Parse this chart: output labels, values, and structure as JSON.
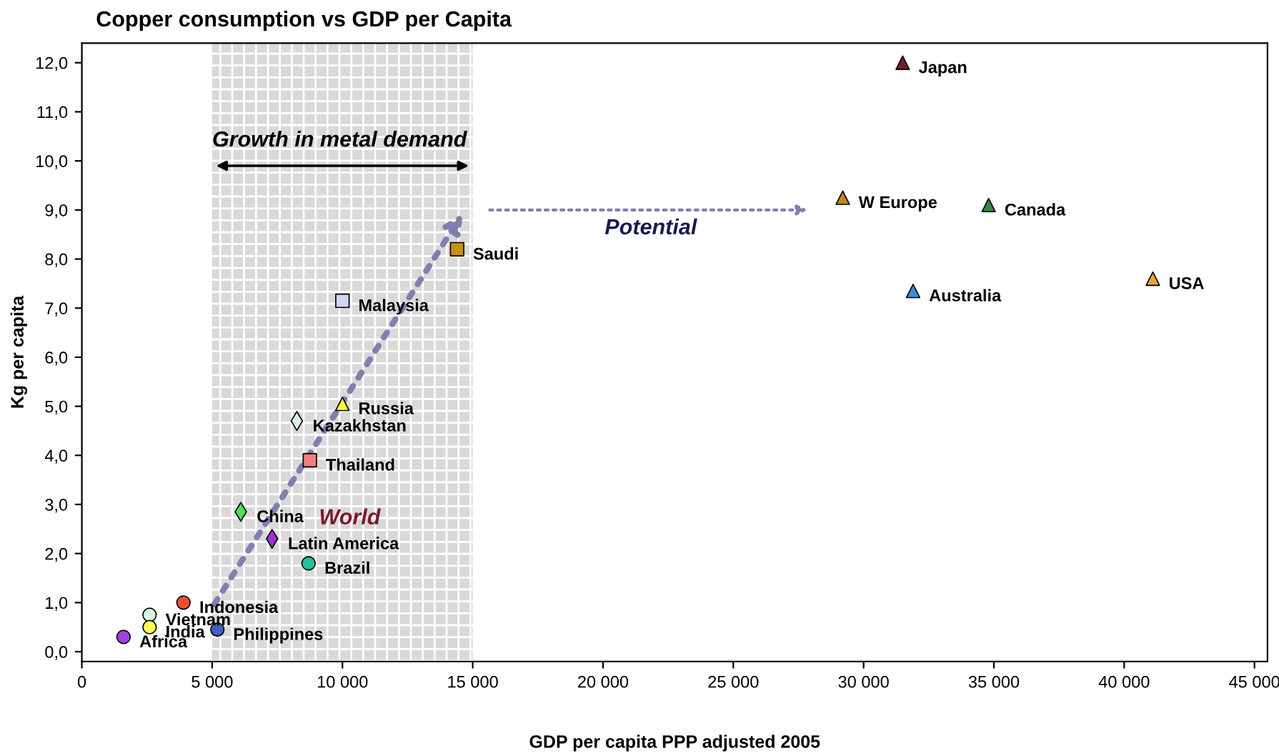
{
  "chart_data": {
    "type": "scatter",
    "title": "Copper consumption vs GDP per Capita",
    "xlabel": "GDP per capita PPP adjusted 2005",
    "ylabel": "Kg per capita",
    "xlim": [
      0,
      45500
    ],
    "ylim": [
      -0.2,
      12.4
    ],
    "xticks": [
      0,
      {
        "value": 5000,
        "label": "5 000"
      },
      {
        "value": 10000,
        "label": "10 000"
      },
      {
        "value": 15000,
        "label": "15 000"
      },
      {
        "value": 20000,
        "label": "20 000"
      },
      {
        "value": 25000,
        "label": "25 000"
      },
      {
        "value": 30000,
        "label": "30 000"
      },
      {
        "value": 35000,
        "label": "35 000"
      },
      {
        "value": 40000,
        "label": "40 000"
      },
      {
        "value": 45000,
        "label": "45 000"
      }
    ],
    "yticks": [
      {
        "value": 0,
        "label": "0,0"
      },
      {
        "value": 1,
        "label": "1,0"
      },
      {
        "value": 2,
        "label": "2,0"
      },
      {
        "value": 3,
        "label": "3,0"
      },
      {
        "value": 4,
        "label": "4,0"
      },
      {
        "value": 5,
        "label": "5,0"
      },
      {
        "value": 6,
        "label": "6,0"
      },
      {
        "value": 7,
        "label": "7,0"
      },
      {
        "value": 8,
        "label": "8,0"
      },
      {
        "value": 9,
        "label": "9,0"
      },
      {
        "value": 10,
        "label": "10,0"
      },
      {
        "value": 11,
        "label": "11,0"
      },
      {
        "value": 12,
        "label": "12,0"
      }
    ],
    "grid": false,
    "legend": false,
    "bands": [
      {
        "axis": "x",
        "from": 5000,
        "to": 15000,
        "label": "Growth in metal demand",
        "color": "#d9d9d9"
      }
    ],
    "annotations": [
      "World",
      "Potential"
    ],
    "series": [
      {
        "name": "Japan",
        "x": [
          31500
        ],
        "values": [
          12.0
        ],
        "color": "#7b1c2a",
        "marker": "triangle"
      },
      {
        "name": "W Europe",
        "x": [
          29200
        ],
        "values": [
          9.25
        ],
        "color": "#c8870f",
        "marker": "triangle"
      },
      {
        "name": "Canada",
        "x": [
          34800
        ],
        "values": [
          9.1
        ],
        "color": "#2e8b3a",
        "marker": "triangle"
      },
      {
        "name": "Australia",
        "x": [
          31900
        ],
        "values": [
          7.35
        ],
        "color": "#3a8fd8",
        "marker": "triangle"
      },
      {
        "name": "USA",
        "x": [
          41100
        ],
        "values": [
          7.6
        ],
        "color": "#f0a040",
        "marker": "triangle"
      },
      {
        "name": "Saudi",
        "x": [
          14400
        ],
        "values": [
          8.2
        ],
        "color": "#c8900c",
        "marker": "square"
      },
      {
        "name": "Malaysia",
        "x": [
          10000
        ],
        "values": [
          7.15
        ],
        "color": "#d0d8f0",
        "marker": "square"
      },
      {
        "name": "Russia",
        "x": [
          10000
        ],
        "values": [
          5.05
        ],
        "color": "#ffff40",
        "marker": "triangle"
      },
      {
        "name": "Kazakhstan",
        "x": [
          8250
        ],
        "values": [
          4.7
        ],
        "color": "#d8f0e8",
        "marker": "diamond"
      },
      {
        "name": "Thailand",
        "x": [
          8750
        ],
        "values": [
          3.9
        ],
        "color": "#f08080",
        "marker": "square"
      },
      {
        "name": "China",
        "x": [
          6100
        ],
        "values": [
          2.85
        ],
        "color": "#50e050",
        "marker": "diamond"
      },
      {
        "name": "Latin America",
        "x": [
          7300
        ],
        "values": [
          2.3
        ],
        "color": "#a030d0",
        "marker": "diamond"
      },
      {
        "name": "Brazil",
        "x": [
          8700
        ],
        "values": [
          1.8
        ],
        "color": "#20c0a0",
        "marker": "circle"
      },
      {
        "name": "Indonesia",
        "x": [
          3900
        ],
        "values": [
          1.0
        ],
        "color": "#f05030",
        "marker": "circle"
      },
      {
        "name": "Vietnam",
        "x": [
          2600
        ],
        "values": [
          0.75
        ],
        "color": "#d8f8e0",
        "marker": "circle"
      },
      {
        "name": "India",
        "x": [
          2600
        ],
        "values": [
          0.5
        ],
        "color": "#ffff50",
        "marker": "circle"
      },
      {
        "name": "Philippines",
        "x": [
          5200
        ],
        "values": [
          0.45
        ],
        "color": "#4060c0",
        "marker": "circle"
      },
      {
        "name": "Africa",
        "x": [
          1600
        ],
        "values": [
          0.3
        ],
        "color": "#a040e0",
        "marker": "circle"
      }
    ]
  }
}
